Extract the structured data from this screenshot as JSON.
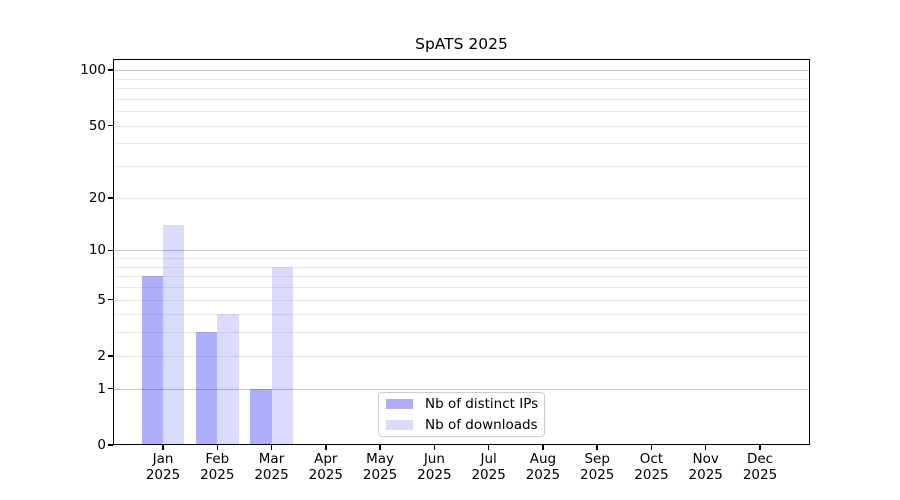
{
  "title": "SpATS 2025",
  "legend": {
    "items": [
      {
        "label": "Nb of distinct IPs",
        "color": "rgba(13,13,243,0.335)"
      },
      {
        "label": "Nb of downloads",
        "color": "rgba(13,13,243,0.15)"
      }
    ]
  },
  "chart_data": {
    "type": "bar",
    "title": "SpATS 2025",
    "categories": [
      "Jan",
      "Feb",
      "Mar",
      "Apr",
      "May",
      "Jun",
      "Jul",
      "Aug",
      "Sep",
      "Oct",
      "Nov",
      "Dec"
    ],
    "category_year": "2025",
    "series": [
      {
        "name": "Nb of distinct IPs",
        "color": "rgba(13,13,243,0.335)",
        "values": [
          7,
          3,
          1,
          0,
          0,
          0,
          0,
          0,
          0,
          0,
          0,
          0
        ]
      },
      {
        "name": "Nb of downloads",
        "color": "rgba(13,13,243,0.15)",
        "values": [
          14,
          4,
          8,
          0,
          0,
          0,
          0,
          0,
          0,
          0,
          0,
          0
        ]
      }
    ],
    "xlabel": "",
    "ylabel": "",
    "yscale": "log1p",
    "ylim": [
      0,
      115
    ],
    "yticks": [
      0,
      1,
      2,
      5,
      10,
      20,
      50,
      100
    ],
    "grid": {
      "on": true,
      "major": [
        1,
        10,
        100
      ],
      "minor": [
        2,
        3,
        4,
        5,
        6,
        7,
        8,
        9,
        20,
        30,
        40,
        50,
        60,
        70,
        80,
        90
      ]
    },
    "legend_position": "inside-bottom-center"
  },
  "colors": {
    "major_grid": "#c6c6c6",
    "minor_grid": "#eaeaea",
    "spine": "#000000",
    "background": "#ffffff"
  }
}
